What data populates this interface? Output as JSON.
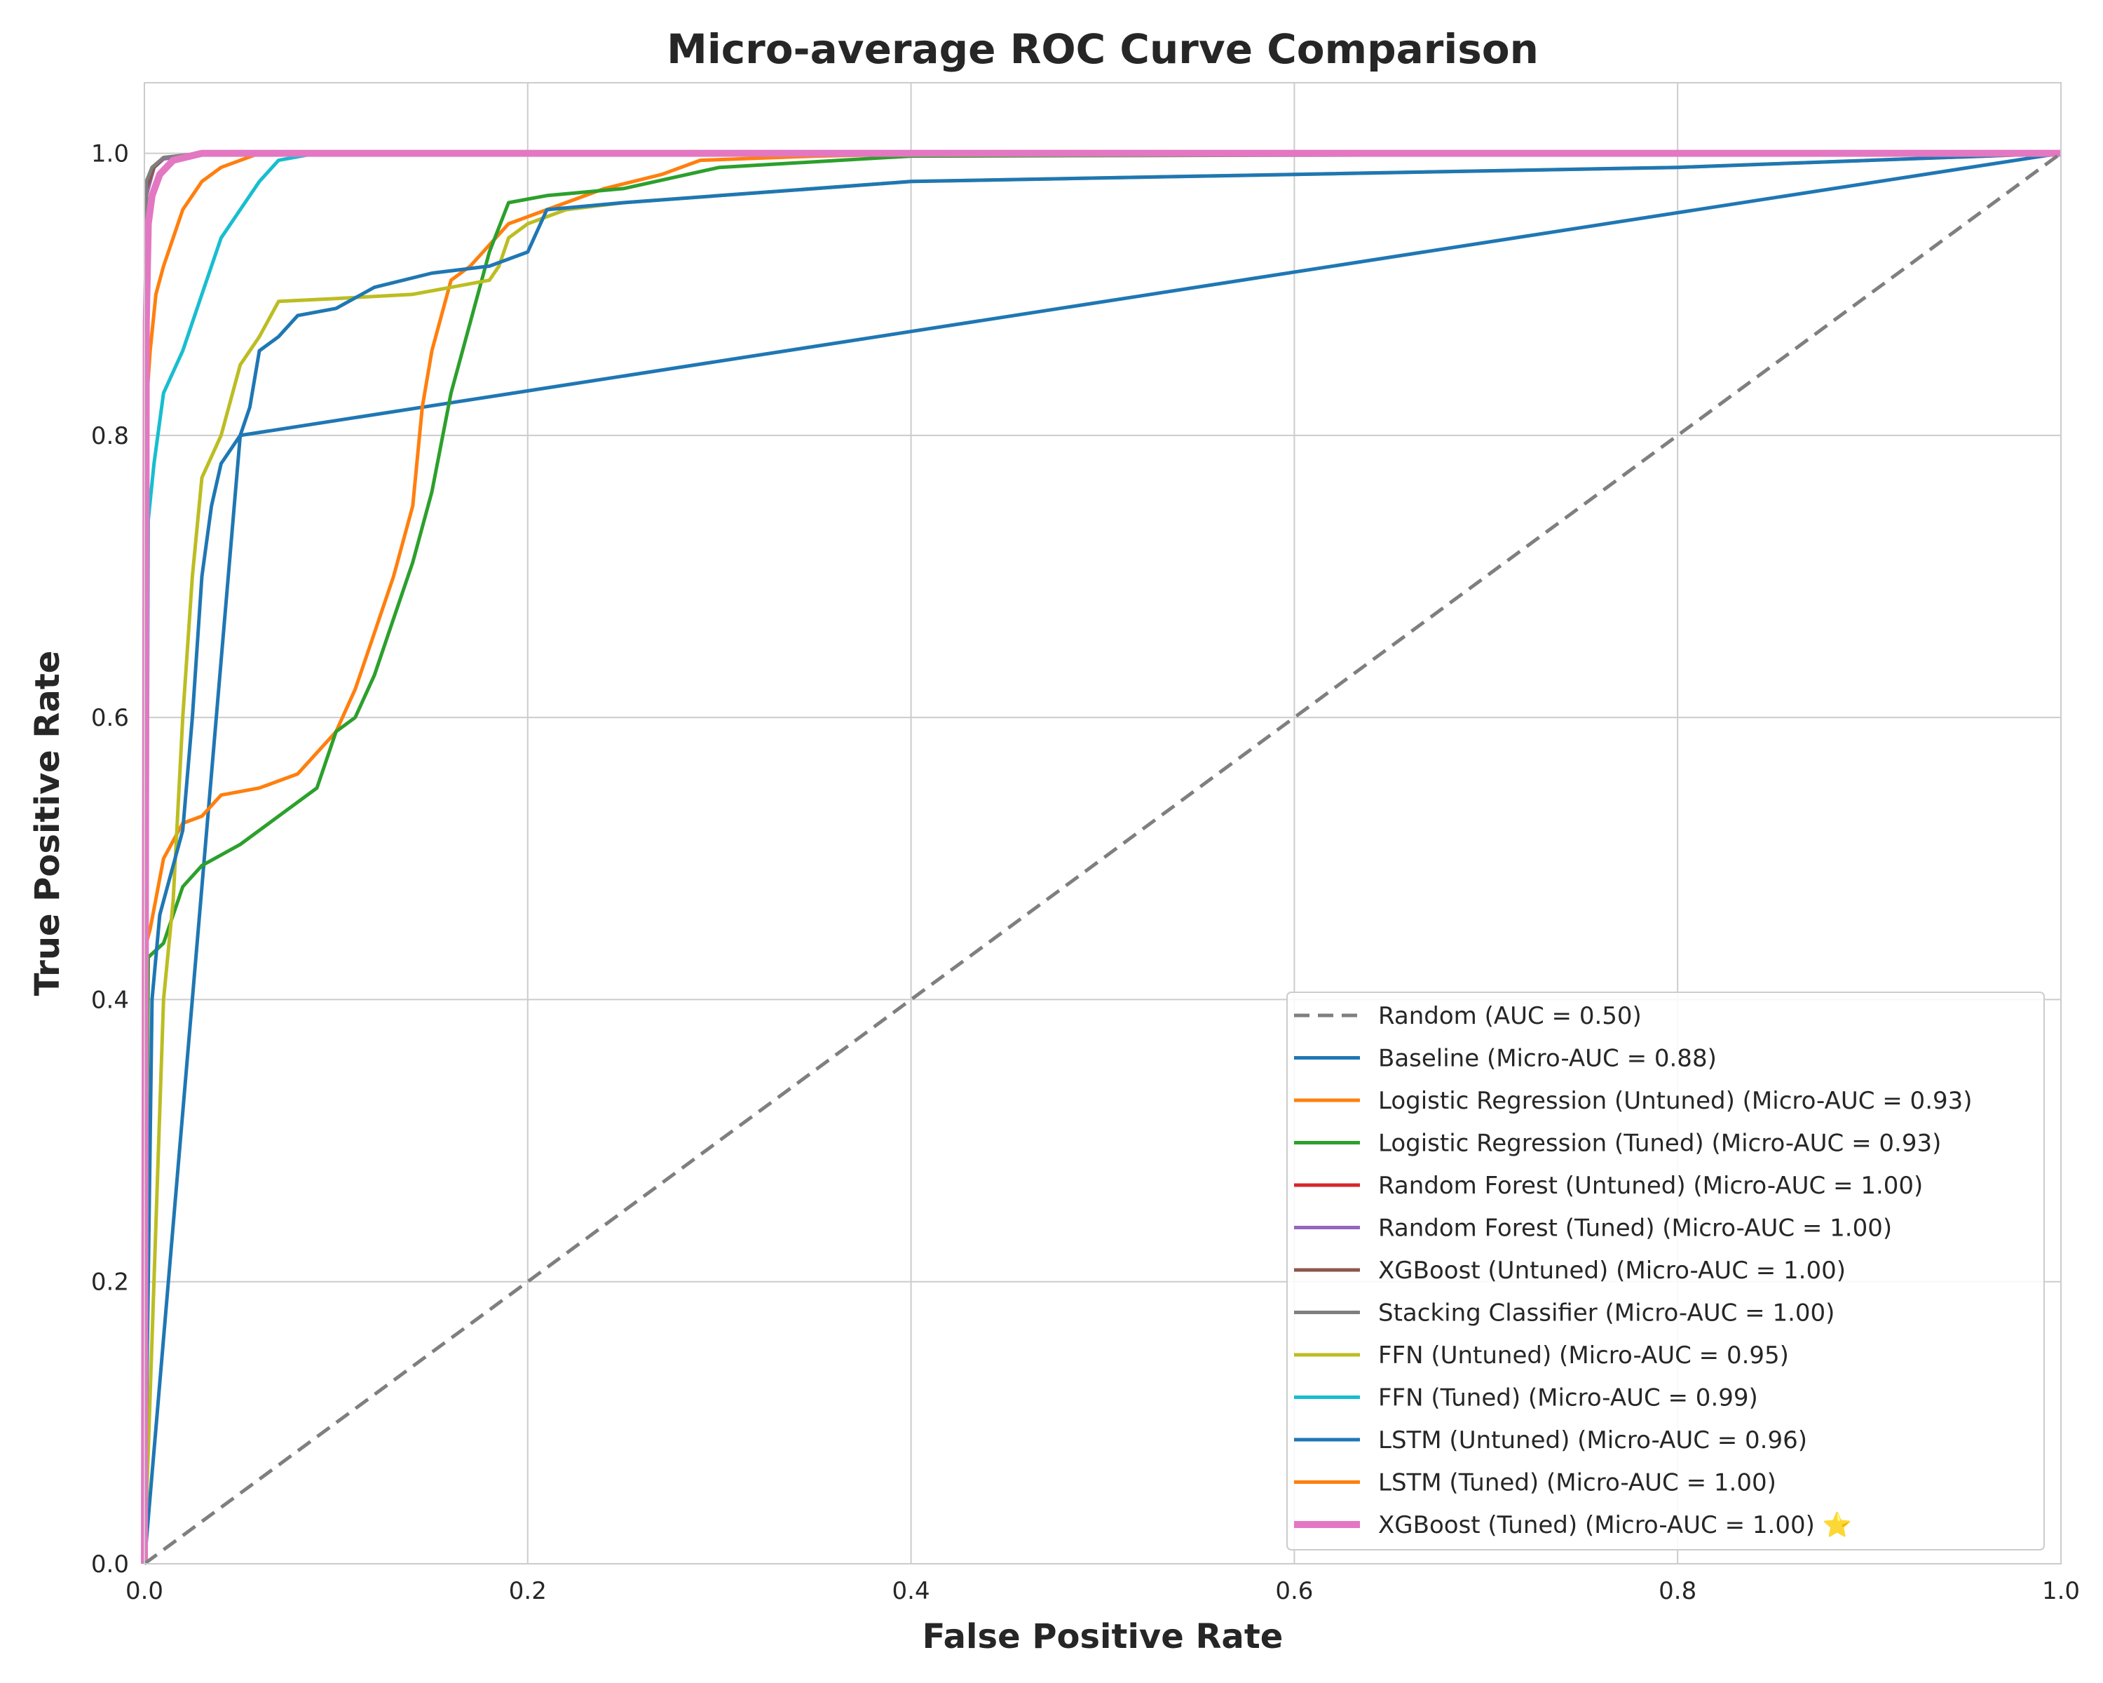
{
  "chart_data": {
    "type": "line",
    "title": "Micro-average ROC Curve Comparison",
    "xlabel": "False Positive Rate",
    "ylabel": "True Positive Rate",
    "xlim": [
      0.0,
      1.0
    ],
    "ylim": [
      0.0,
      1.05
    ],
    "xticks": [
      "0.0",
      "0.2",
      "0.4",
      "0.6",
      "0.8",
      "1.0"
    ],
    "yticks": [
      "0.0",
      "0.2",
      "0.4",
      "0.6",
      "0.8",
      "1.0"
    ],
    "grid": true,
    "legend_position": "lower-right",
    "series": [
      {
        "name": "Random (AUC = 0.50)",
        "color": "#7f7f7f",
        "dashed": true,
        "width": "thin",
        "x": [
          0,
          1
        ],
        "y": [
          0,
          1
        ]
      },
      {
        "name": "Baseline (Micro-AUC = 0.88)",
        "color": "#1f77b4",
        "width": "thin",
        "x": [
          0,
          0.05,
          1
        ],
        "y": [
          0,
          0.8,
          1
        ]
      },
      {
        "name": "Logistic Regression (Untuned) (Micro-AUC = 0.93)",
        "color": "#ff7f0e",
        "width": "thin",
        "x": [
          0,
          0.001,
          0.003,
          0.01,
          0.02,
          0.03,
          0.04,
          0.06,
          0.08,
          0.1,
          0.11,
          0.12,
          0.13,
          0.14,
          0.145,
          0.15,
          0.16,
          0.17,
          0.19,
          0.21,
          0.24,
          0.27,
          0.29,
          0.35,
          0.42,
          1
        ],
        "y": [
          0,
          0.44,
          0.45,
          0.5,
          0.525,
          0.53,
          0.545,
          0.55,
          0.56,
          0.59,
          0.62,
          0.66,
          0.7,
          0.75,
          0.82,
          0.86,
          0.91,
          0.92,
          0.95,
          0.96,
          0.975,
          0.985,
          0.995,
          0.998,
          1.0,
          1.0
        ]
      },
      {
        "name": "Logistic Regression (Tuned) (Micro-AUC = 0.93)",
        "color": "#2ca02c",
        "width": "thin",
        "x": [
          0,
          0.002,
          0.01,
          0.02,
          0.03,
          0.05,
          0.07,
          0.09,
          0.1,
          0.11,
          0.12,
          0.13,
          0.14,
          0.15,
          0.16,
          0.17,
          0.18,
          0.19,
          0.21,
          0.25,
          0.3,
          0.4,
          1
        ],
        "y": [
          0,
          0.43,
          0.44,
          0.48,
          0.495,
          0.51,
          0.53,
          0.55,
          0.59,
          0.6,
          0.63,
          0.67,
          0.71,
          0.76,
          0.83,
          0.88,
          0.93,
          0.965,
          0.97,
          0.975,
          0.99,
          0.998,
          1.0
        ]
      },
      {
        "name": "Random Forest (Untuned) (Micro-AUC = 1.00)",
        "color": "#d62728",
        "width": "thin",
        "x": [
          0,
          0.001,
          0.005,
          0.01,
          0.03,
          1
        ],
        "y": [
          0,
          0.97,
          0.99,
          0.996,
          1.0,
          1.0
        ]
      },
      {
        "name": "Random Forest (Tuned) (Micro-AUC = 1.00)",
        "color": "#9467bd",
        "width": "thin",
        "x": [
          0,
          0.001,
          0.005,
          0.01,
          0.03,
          1
        ],
        "y": [
          0,
          0.97,
          0.99,
          0.996,
          1.0,
          1.0
        ]
      },
      {
        "name": "XGBoost (Untuned) (Micro-AUC = 1.00)",
        "color": "#8c564b",
        "width": "thin",
        "x": [
          0,
          0.001,
          0.005,
          0.01,
          0.03,
          1
        ],
        "y": [
          0,
          0.975,
          0.99,
          0.997,
          1.0,
          1.0
        ]
      },
      {
        "name": "Stacking Classifier (Micro-AUC = 1.00)",
        "color": "#7f7f7f",
        "width": "thin",
        "x": [
          0,
          0.001,
          0.004,
          0.01,
          0.03,
          1
        ],
        "y": [
          0,
          0.98,
          0.99,
          0.997,
          1.0,
          1.0
        ]
      },
      {
        "name": "FFN (Untuned) (Micro-AUC = 0.95)",
        "color": "#bcbd22",
        "width": "thin",
        "x": [
          0,
          0.01,
          0.015,
          0.02,
          0.025,
          0.03,
          0.04,
          0.05,
          0.06,
          0.07,
          0.1,
          0.14,
          0.16,
          0.18,
          0.185,
          0.19,
          0.2,
          0.22,
          0.25,
          0.3,
          0.4,
          0.6,
          0.8,
          1
        ],
        "y": [
          0,
          0.4,
          0.47,
          0.6,
          0.7,
          0.77,
          0.8,
          0.85,
          0.87,
          0.895,
          0.897,
          0.9,
          0.905,
          0.91,
          0.92,
          0.94,
          0.95,
          0.96,
          0.965,
          0.97,
          0.98,
          0.985,
          0.99,
          1.0
        ]
      },
      {
        "name": "FFN (Tuned) (Micro-AUC = 0.99)",
        "color": "#17becf",
        "width": "thin",
        "x": [
          0,
          0.002,
          0.005,
          0.01,
          0.02,
          0.03,
          0.04,
          0.05,
          0.06,
          0.07,
          0.09,
          1
        ],
        "y": [
          0,
          0.74,
          0.78,
          0.83,
          0.86,
          0.9,
          0.94,
          0.96,
          0.98,
          0.995,
          1.0,
          1.0
        ]
      },
      {
        "name": "LSTM (Untuned) (Micro-AUC = 0.96)",
        "color": "#1f77b4",
        "width": "thin",
        "x": [
          0,
          0.004,
          0.008,
          0.012,
          0.02,
          0.025,
          0.03,
          0.035,
          0.04,
          0.05,
          0.055,
          0.06,
          0.07,
          0.08,
          0.1,
          0.12,
          0.15,
          0.18,
          0.2,
          0.21,
          0.25,
          0.3,
          0.4,
          0.6,
          0.8,
          1
        ],
        "y": [
          0,
          0.4,
          0.46,
          0.48,
          0.52,
          0.6,
          0.7,
          0.75,
          0.78,
          0.8,
          0.82,
          0.86,
          0.87,
          0.885,
          0.89,
          0.905,
          0.915,
          0.92,
          0.93,
          0.96,
          0.965,
          0.97,
          0.98,
          0.985,
          0.99,
          1.0
        ]
      },
      {
        "name": "LSTM (Tuned) (Micro-AUC = 1.00)",
        "color": "#ff7f0e",
        "width": "thin",
        "x": [
          0,
          0.001,
          0.003,
          0.006,
          0.01,
          0.015,
          0.02,
          0.03,
          0.04,
          0.06,
          1
        ],
        "y": [
          0,
          0.82,
          0.86,
          0.9,
          0.92,
          0.94,
          0.96,
          0.98,
          0.99,
          1.0,
          1.0
        ]
      },
      {
        "name": "XGBoost (Tuned) (Micro-AUC = 1.00) ⭐",
        "color": "#e377c2",
        "width": "thick",
        "x": [
          0,
          0.001,
          0.002,
          0.004,
          0.008,
          0.015,
          0.03,
          1
        ],
        "y": [
          0,
          0.88,
          0.95,
          0.97,
          0.985,
          0.995,
          1.0,
          1.0
        ]
      }
    ]
  }
}
